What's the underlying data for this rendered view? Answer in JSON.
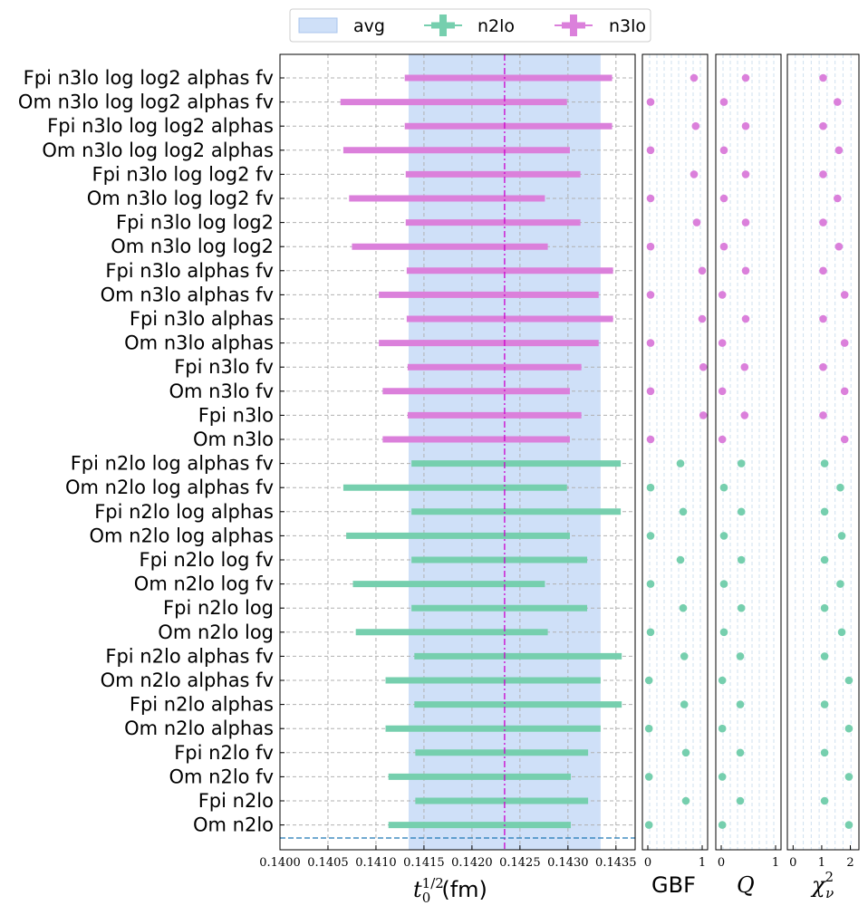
{
  "chart_data": {
    "type": "errorbar",
    "colors": {
      "n2lo": "#76cfae",
      "n3lo": "#db80db",
      "avg_band": "#cfe0f8",
      "avg_line": "#cc00cc",
      "ref_line": "#1f77b4"
    },
    "legend": {
      "placement": "top-center",
      "entries": [
        "avg",
        "n2lo",
        "n3lo"
      ]
    },
    "main": {
      "xlabel_base": "t",
      "xlabel_sup": "1/2",
      "xlabel_sub": "0",
      "xlabel_unit": "(fm)",
      "xlim": [
        0.14,
        0.1437
      ],
      "xticks": [
        "0.1400",
        "0.1405",
        "0.1410",
        "0.1415",
        "0.1420",
        "0.1425",
        "0.1430",
        "0.1435"
      ],
      "grid": true,
      "avg": {
        "center": 0.14234,
        "lower": 0.14134,
        "upper": 0.14334
      },
      "ref_line_y": "bottom dashed line"
    },
    "models": [
      {
        "label": "Fpi n3lo log log2 alphas fv",
        "order": "n3lo",
        "lo": 0.1413,
        "hi": 0.14346,
        "gbf": 0.85,
        "q": 0.45,
        "chi2": 1.05
      },
      {
        "label": "Om n3lo log log2 alphas fv",
        "order": "n3lo",
        "lo": 0.14063,
        "hi": 0.14299,
        "gbf": 0.05,
        "q": 0.05,
        "chi2": 1.55
      },
      {
        "label": "Fpi n3lo log log2 alphas",
        "order": "n3lo",
        "lo": 0.1413,
        "hi": 0.14346,
        "gbf": 0.88,
        "q": 0.45,
        "chi2": 1.05
      },
      {
        "label": "Om n3lo log log2 alphas",
        "order": "n3lo",
        "lo": 0.14066,
        "hi": 0.14302,
        "gbf": 0.05,
        "q": 0.05,
        "chi2": 1.6
      },
      {
        "label": "Fpi n3lo log log2 fv",
        "order": "n3lo",
        "lo": 0.14131,
        "hi": 0.14313,
        "gbf": 0.85,
        "q": 0.45,
        "chi2": 1.05
      },
      {
        "label": "Om n3lo log log2 fv",
        "order": "n3lo",
        "lo": 0.14072,
        "hi": 0.14276,
        "gbf": 0.05,
        "q": 0.05,
        "chi2": 1.55
      },
      {
        "label": "Fpi n3lo log log2",
        "order": "n3lo",
        "lo": 0.14131,
        "hi": 0.14313,
        "gbf": 0.9,
        "q": 0.45,
        "chi2": 1.05
      },
      {
        "label": "Om n3lo log log2",
        "order": "n3lo",
        "lo": 0.14075,
        "hi": 0.14279,
        "gbf": 0.05,
        "q": 0.05,
        "chi2": 1.6
      },
      {
        "label": "Fpi n3lo alphas fv",
        "order": "n3lo",
        "lo": 0.14132,
        "hi": 0.14347,
        "gbf": 1.0,
        "q": 0.45,
        "chi2": 1.05
      },
      {
        "label": "Om n3lo alphas fv",
        "order": "n3lo",
        "lo": 0.14103,
        "hi": 0.14332,
        "gbf": 0.05,
        "q": 0.02,
        "chi2": 1.8
      },
      {
        "label": "Fpi n3lo alphas",
        "order": "n3lo",
        "lo": 0.14132,
        "hi": 0.14347,
        "gbf": 1.0,
        "q": 0.45,
        "chi2": 1.05
      },
      {
        "label": "Om n3lo alphas",
        "order": "n3lo",
        "lo": 0.14103,
        "hi": 0.14332,
        "gbf": 0.05,
        "q": 0.02,
        "chi2": 1.8
      },
      {
        "label": "Fpi n3lo fv",
        "order": "n3lo",
        "lo": 0.14133,
        "hi": 0.14314,
        "gbf": 1.02,
        "q": 0.43,
        "chi2": 1.05
      },
      {
        "label": "Om n3lo fv",
        "order": "n3lo",
        "lo": 0.14107,
        "hi": 0.14302,
        "gbf": 0.05,
        "q": 0.02,
        "chi2": 1.8
      },
      {
        "label": "Fpi n3lo",
        "order": "n3lo",
        "lo": 0.14133,
        "hi": 0.14314,
        "gbf": 1.02,
        "q": 0.43,
        "chi2": 1.05
      },
      {
        "label": "Om n3lo",
        "order": "n3lo",
        "lo": 0.14107,
        "hi": 0.14302,
        "gbf": 0.05,
        "q": 0.02,
        "chi2": 1.8
      },
      {
        "label": "Fpi n2lo log alphas fv",
        "order": "n2lo",
        "lo": 0.14137,
        "hi": 0.14355,
        "gbf": 0.6,
        "q": 0.37,
        "chi2": 1.1
      },
      {
        "label": "Om n2lo log alphas fv",
        "order": "n2lo",
        "lo": 0.14066,
        "hi": 0.14299,
        "gbf": 0.05,
        "q": 0.05,
        "chi2": 1.65
      },
      {
        "label": "Fpi n2lo log alphas",
        "order": "n2lo",
        "lo": 0.14137,
        "hi": 0.14355,
        "gbf": 0.65,
        "q": 0.37,
        "chi2": 1.1
      },
      {
        "label": "Om n2lo log alphas",
        "order": "n2lo",
        "lo": 0.14069,
        "hi": 0.14302,
        "gbf": 0.05,
        "q": 0.05,
        "chi2": 1.7
      },
      {
        "label": "Fpi n2lo log fv",
        "order": "n2lo",
        "lo": 0.14137,
        "hi": 0.1432,
        "gbf": 0.6,
        "q": 0.37,
        "chi2": 1.1
      },
      {
        "label": "Om n2lo log fv",
        "order": "n2lo",
        "lo": 0.14076,
        "hi": 0.14276,
        "gbf": 0.05,
        "q": 0.05,
        "chi2": 1.65
      },
      {
        "label": "Fpi n2lo log",
        "order": "n2lo",
        "lo": 0.14137,
        "hi": 0.1432,
        "gbf": 0.65,
        "q": 0.37,
        "chi2": 1.1
      },
      {
        "label": "Om n2lo log",
        "order": "n2lo",
        "lo": 0.14079,
        "hi": 0.14279,
        "gbf": 0.05,
        "q": 0.05,
        "chi2": 1.7
      },
      {
        "label": "Fpi n2lo alphas fv",
        "order": "n2lo",
        "lo": 0.1414,
        "hi": 0.14356,
        "gbf": 0.67,
        "q": 0.35,
        "chi2": 1.1
      },
      {
        "label": "Om n2lo alphas fv",
        "order": "n2lo",
        "lo": 0.1411,
        "hi": 0.14334,
        "gbf": 0.02,
        "q": 0.02,
        "chi2": 1.95
      },
      {
        "label": "Fpi n2lo alphas",
        "order": "n2lo",
        "lo": 0.1414,
        "hi": 0.14356,
        "gbf": 0.67,
        "q": 0.35,
        "chi2": 1.1
      },
      {
        "label": "Om n2lo alphas",
        "order": "n2lo",
        "lo": 0.1411,
        "hi": 0.14334,
        "gbf": 0.02,
        "q": 0.02,
        "chi2": 1.95
      },
      {
        "label": "Fpi n2lo fv",
        "order": "n2lo",
        "lo": 0.14141,
        "hi": 0.14321,
        "gbf": 0.7,
        "q": 0.35,
        "chi2": 1.1
      },
      {
        "label": "Om n2lo fv",
        "order": "n2lo",
        "lo": 0.14113,
        "hi": 0.14303,
        "gbf": 0.02,
        "q": 0.02,
        "chi2": 1.95
      },
      {
        "label": "Fpi n2lo",
        "order": "n2lo",
        "lo": 0.14141,
        "hi": 0.14321,
        "gbf": 0.7,
        "q": 0.35,
        "chi2": 1.1
      },
      {
        "label": "Om n2lo",
        "order": "n2lo",
        "lo": 0.14113,
        "hi": 0.14303,
        "gbf": 0.02,
        "q": 0.02,
        "chi2": 1.95
      }
    ],
    "subplots": [
      {
        "key": "gbf",
        "label": "GBF",
        "xlim": [
          -0.1,
          1.1
        ],
        "xticks": [
          0,
          1
        ],
        "ticklabels": [
          "0",
          "1"
        ]
      },
      {
        "key": "q",
        "label": "Q",
        "italic": true,
        "xlim": [
          -0.1,
          1.1
        ],
        "xticks": [
          0,
          1
        ],
        "ticklabels": [
          "0",
          "1"
        ]
      },
      {
        "key": "chi2",
        "label_base": "χ",
        "label_sub": "ν",
        "label_sup": "2",
        "italic": true,
        "xlim": [
          -0.2,
          2.3
        ],
        "xticks": [
          0,
          1,
          2
        ],
        "ticklabels": [
          "0",
          "1",
          "2"
        ]
      }
    ]
  }
}
